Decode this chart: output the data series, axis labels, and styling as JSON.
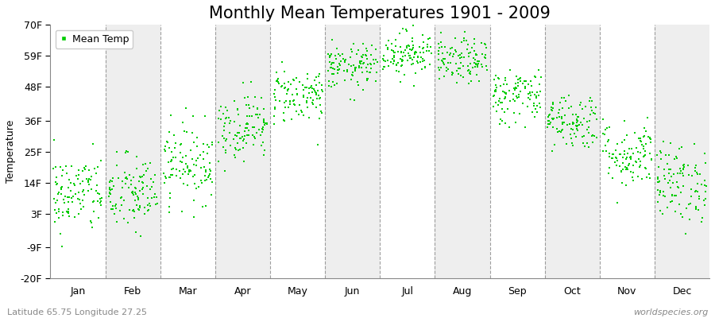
{
  "title": "Monthly Mean Temperatures 1901 - 2009",
  "ylabel": "Temperature",
  "subtitle_left": "Latitude 65.75 Longitude 27.25",
  "subtitle_right": "worldspecies.org",
  "ytick_labels": [
    "70F",
    "59F",
    "48F",
    "36F",
    "25F",
    "14F",
    "3F",
    "-9F",
    "-20F"
  ],
  "ytick_values": [
    70,
    59,
    48,
    36,
    25,
    14,
    3,
    -9,
    -20
  ],
  "ylim": [
    -20,
    70
  ],
  "month_names": [
    "Jan",
    "Feb",
    "Mar",
    "Apr",
    "May",
    "Jun",
    "Jul",
    "Aug",
    "Sep",
    "Oct",
    "Nov",
    "Dec"
  ],
  "month_means_F": [
    10,
    10,
    21,
    34,
    45,
    55,
    60,
    57,
    45,
    36,
    24,
    14
  ],
  "month_stds_F": [
    7,
    7,
    7,
    6,
    5,
    4,
    4,
    4,
    5,
    5,
    6,
    7
  ],
  "dot_color": "#00cc00",
  "dot_size": 4,
  "background_color": "#ffffff",
  "strip_color_odd": "#eeeeee",
  "strip_color_even": "#ffffff",
  "grid_color": "#888888",
  "title_fontsize": 15,
  "axis_label_fontsize": 9,
  "tick_label_fontsize": 9,
  "legend_fontsize": 9,
  "n_years": 109,
  "seed": 42
}
